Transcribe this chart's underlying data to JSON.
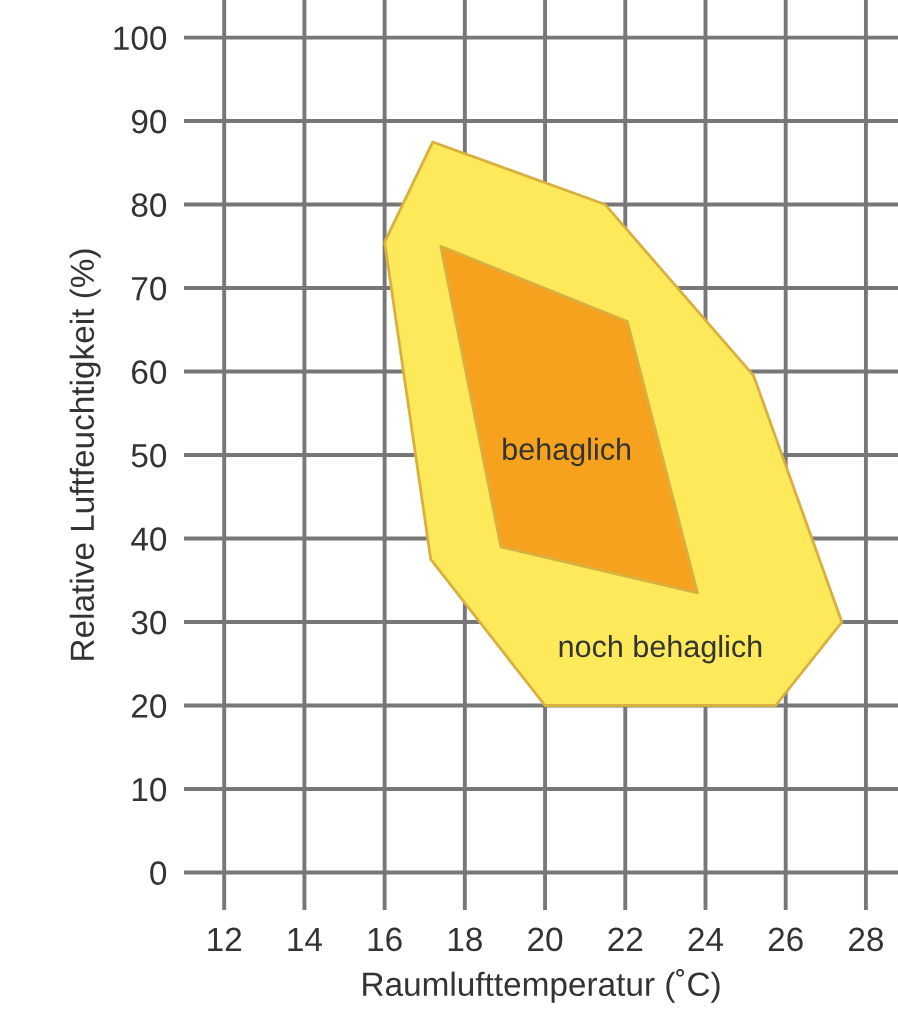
{
  "chart_data": {
    "type": "area",
    "xlabel": "Raumlufttemperatur (˚C)",
    "ylabel": "Relative Luftfeuchtigkeit (%)",
    "xlim": [
      11,
      28.8
    ],
    "ylim": [
      -4.5,
      104.5
    ],
    "xticks": [
      12,
      14,
      16,
      18,
      20,
      22,
      24,
      26,
      28
    ],
    "yticks": [
      0,
      10,
      20,
      30,
      40,
      50,
      60,
      70,
      80,
      90,
      100
    ],
    "grid": true,
    "series": [
      {
        "name": "noch behaglich",
        "color": "#fde95a",
        "x": [
          16,
          17.2,
          21.5,
          25.2,
          27.4,
          25.75,
          20,
          17.15,
          16
        ],
        "values": [
          75.5,
          87.5,
          80,
          59.5,
          30,
          20,
          20,
          37.5,
          75.5
        ]
      },
      {
        "name": "behaglich",
        "color": "#f6a21e",
        "x": [
          17.4,
          22.05,
          23.8,
          18.9,
          17.4
        ],
        "values": [
          75,
          66,
          33.5,
          39,
          75
        ]
      }
    ]
  }
}
